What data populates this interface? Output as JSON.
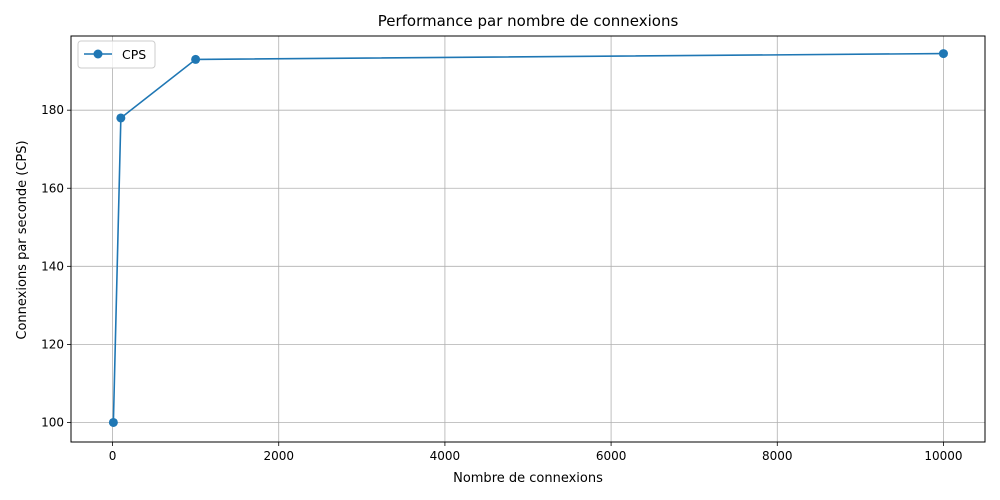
{
  "chart_data": {
    "type": "line",
    "title": "Performance par nombre de connexions",
    "xlabel": "Nombre de connexions",
    "ylabel": "Connexions par seconde (CPS)",
    "xlim": [
      -500,
      10500
    ],
    "ylim": [
      95,
      199
    ],
    "xticks": [
      0,
      2000,
      4000,
      6000,
      8000,
      10000
    ],
    "yticks": [
      100,
      120,
      140,
      160,
      180
    ],
    "grid": true,
    "legend_position": "top-left",
    "series": [
      {
        "name": "CPS",
        "color": "#1f77b4",
        "marker": "circle",
        "x": [
          10,
          100,
          1000,
          10000
        ],
        "y": [
          100,
          178,
          193,
          194.5
        ]
      }
    ]
  }
}
